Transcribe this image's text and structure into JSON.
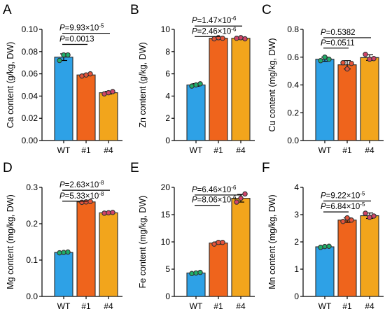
{
  "colors": {
    "wt": "#2ea1e6",
    "l1": "#ef641c",
    "l4": "#f2a51c",
    "dot_wt": "#1fae6a",
    "dot_l1": "#e5533a",
    "dot_l4": "#d04468"
  },
  "chart_data": [
    {
      "type": "bar",
      "panel": "A",
      "ylabel": "Ca content (g/kg, DW)",
      "categories": [
        "WT",
        "#1",
        "#4"
      ],
      "values": [
        0.075,
        0.059,
        0.043
      ],
      "errors": [
        0.003,
        0.0008,
        0.0012
      ],
      "points": [
        [
          0.072,
          0.077,
          0.077
        ],
        [
          0.058,
          0.059,
          0.06
        ],
        [
          0.042,
          0.043,
          0.044
        ]
      ],
      "ylim": [
        0,
        0.1
      ],
      "yticks": [
        "0.00",
        "0.02",
        "0.04",
        "0.06",
        "0.08",
        "0.10"
      ],
      "significance": [
        {
          "from": 0,
          "to": 1,
          "label": "0.0013",
          "level": 0.0865
        },
        {
          "from": 0,
          "to": 2,
          "label": "9.93×10",
          "exp": "-5",
          "level": 0.0965
        }
      ]
    },
    {
      "type": "bar",
      "panel": "B",
      "ylabel": "Zn content (g/kg, DW)",
      "categories": [
        "WT",
        "#1",
        "#4"
      ],
      "values": [
        5.0,
        9.2,
        9.2
      ],
      "errors": [
        0.12,
        0.08,
        0.07
      ],
      "points": [
        [
          4.9,
          5.0,
          5.1
        ],
        [
          9.15,
          9.25,
          9.2
        ],
        [
          9.2,
          9.25,
          9.15
        ]
      ],
      "ylim": [
        0,
        10
      ],
      "yticks": [
        "0",
        "2",
        "4",
        "6",
        "8",
        "10"
      ],
      "significance": [
        {
          "from": 0,
          "to": 1,
          "label": "2.46×10",
          "exp": "-6",
          "level": 9.35
        },
        {
          "from": 0,
          "to": 2,
          "label": "1.47×10",
          "exp": "-6",
          "level": 10.3
        }
      ]
    },
    {
      "type": "bar",
      "panel": "C",
      "ylabel": "Cu content (mg/kg, DW)",
      "categories": [
        "WT",
        "#1",
        "#4"
      ],
      "values": [
        0.585,
        0.545,
        0.597
      ],
      "errors": [
        0.015,
        0.03,
        0.02
      ],
      "points": [
        [
          0.575,
          0.6,
          0.585
        ],
        [
          0.56,
          0.515,
          0.555
        ],
        [
          0.62,
          0.585,
          0.59
        ]
      ],
      "ylim": [
        0,
        0.8
      ],
      "yticks": [
        "0.0",
        "0.2",
        "0.4",
        "0.6",
        "0.8"
      ],
      "significance": [
        {
          "from": 0,
          "to": 1,
          "label": "0.0511",
          "level": 0.665
        },
        {
          "from": 0,
          "to": 2,
          "label": "0.5382",
          "level": 0.74
        }
      ]
    },
    {
      "type": "bar",
      "panel": "D",
      "ylabel": "Mg content (mg/kg, DW)",
      "categories": [
        "WT",
        "#1",
        "#4"
      ],
      "values": [
        0.121,
        0.26,
        0.23
      ],
      "errors": [
        0.002,
        0.002,
        0.002
      ],
      "points": [
        [
          0.12,
          0.121,
          0.122
        ],
        [
          0.259,
          0.26,
          0.261
        ],
        [
          0.229,
          0.23,
          0.231
        ]
      ],
      "ylim": [
        0,
        0.3
      ],
      "yticks": [
        "0.0",
        "0.1",
        "0.2",
        "0.3"
      ],
      "significance": [
        {
          "from": 0,
          "to": 1,
          "label": "5.33×10",
          "exp": "-8",
          "level": 0.262
        },
        {
          "from": 0,
          "to": 2,
          "label": "2.63×10",
          "exp": "-8",
          "level": 0.292
        }
      ]
    },
    {
      "type": "bar",
      "panel": "E",
      "ylabel": "Fe content (mg/kg, DW)",
      "categories": [
        "WT",
        "#1",
        "#4"
      ],
      "values": [
        4.3,
        9.8,
        18.0
      ],
      "errors": [
        0.12,
        0.2,
        0.7
      ],
      "points": [
        [
          4.2,
          4.3,
          4.4
        ],
        [
          9.6,
          9.9,
          9.9
        ],
        [
          17.3,
          18.0,
          18.8
        ]
      ],
      "ylim": [
        0,
        20
      ],
      "yticks": [
        "0",
        "5",
        "10",
        "15",
        "20"
      ],
      "significance": [
        {
          "from": 0,
          "to": 1,
          "label": "8.06×10",
          "exp": "-6",
          "level": 16.7
        },
        {
          "from": 0,
          "to": 2,
          "label": "6.46×10",
          "exp": "-6",
          "level": 18.6
        }
      ]
    },
    {
      "type": "bar",
      "panel": "F",
      "ylabel": "Mn content (mg/kg, DW)",
      "categories": [
        "WT",
        "#1",
        "#4"
      ],
      "values": [
        1.82,
        2.8,
        2.96
      ],
      "errors": [
        0.03,
        0.08,
        0.1
      ],
      "points": [
        [
          1.8,
          1.83,
          1.84
        ],
        [
          2.75,
          2.88,
          2.8
        ],
        [
          3.05,
          2.9,
          2.95
        ]
      ],
      "ylim": [
        0,
        4
      ],
      "yticks": [
        "0",
        "1",
        "2",
        "3",
        "4"
      ],
      "significance": [
        {
          "from": 0,
          "to": 1,
          "label": "6.84×10",
          "exp": "-5",
          "level": 3.1
        },
        {
          "from": 0,
          "to": 2,
          "label": "9.22×10",
          "exp": "-5",
          "level": 3.5
        }
      ]
    }
  ]
}
